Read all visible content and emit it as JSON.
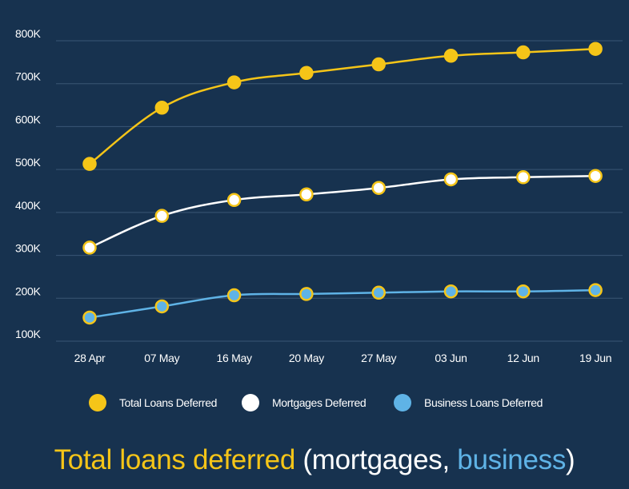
{
  "chart_data": {
    "type": "line",
    "categories": [
      "28 Apr",
      "07 May",
      "16 May",
      "20 May",
      "27 May",
      "03 Jun",
      "12 Jun",
      "19 Jun"
    ],
    "ylim": [
      100000,
      800000
    ],
    "yticks": [
      {
        "value": 100000,
        "label": "100K"
      },
      {
        "value": 200000,
        "label": "200K"
      },
      {
        "value": 300000,
        "label": "300K"
      },
      {
        "value": 400000,
        "label": "400K"
      },
      {
        "value": 500000,
        "label": "500K"
      },
      {
        "value": 600000,
        "label": "600K"
      },
      {
        "value": 700000,
        "label": "700K"
      },
      {
        "value": 800000,
        "label": "800K"
      }
    ],
    "grid": true,
    "legend_position": "bottom",
    "series": [
      {
        "name": "Total Loans Deferred",
        "color": "#f5c518",
        "fill": "#f5c518",
        "values": [
          513000,
          644000,
          703000,
          725000,
          745000,
          765000,
          773000,
          781000
        ]
      },
      {
        "name": "Mortgages Deferred",
        "color": "#ffffff",
        "fill": "#ffffff",
        "values": [
          318000,
          392000,
          429000,
          442000,
          457000,
          477000,
          482000,
          485000
        ]
      },
      {
        "name": "Business Loans Deferred",
        "color": "#5fb3e6",
        "fill": "#5fb3e6",
        "values": [
          155000,
          181000,
          207000,
          210000,
          213000,
          216000,
          216000,
          219000
        ]
      }
    ],
    "title_parts": [
      {
        "text": "Total loans deferred",
        "color": "#f5c518"
      },
      {
        "text": " (mortgages, ",
        "color": "#ffffff"
      },
      {
        "text": "business",
        "color": "#5fb3e6"
      },
      {
        "text": ")",
        "color": "#ffffff"
      }
    ]
  },
  "colors": {
    "background": "#17324f",
    "grid": "#3a5674",
    "marker_outline": "#f5c518"
  }
}
